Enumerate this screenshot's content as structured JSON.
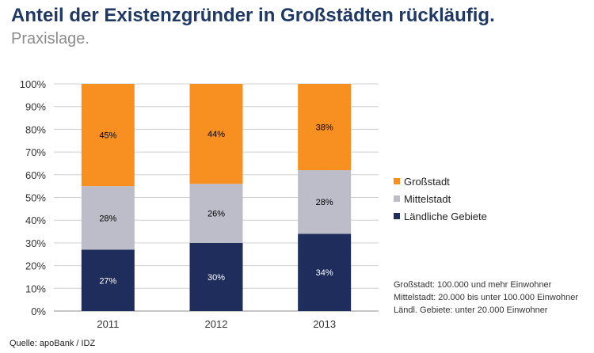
{
  "header": {
    "title": "Anteil der Existenzgründer in Großstädten rückläufig.",
    "subtitle": "Praxislage."
  },
  "chart_data": {
    "type": "bar",
    "stacked": true,
    "categories": [
      "2011",
      "2012",
      "2013"
    ],
    "series": [
      {
        "name": "Ländliche Gebiete",
        "values": [
          27,
          30,
          34
        ],
        "color": "#1f2d5c",
        "label_color": "#ffffff"
      },
      {
        "name": "Mittelstadt",
        "values": [
          28,
          26,
          28
        ],
        "color": "#bdbdc9",
        "label_color": "#000000"
      },
      {
        "name": "Großstadt",
        "values": [
          45,
          44,
          38
        ],
        "color": "#f79020",
        "label_color": "#000000"
      }
    ],
    "ylim": [
      0,
      100
    ],
    "yticks": [
      "0%",
      "10%",
      "20%",
      "30%",
      "40%",
      "50%",
      "60%",
      "70%",
      "80%",
      "90%",
      "100%"
    ],
    "grid": true,
    "legend_position": "right"
  },
  "legend": {
    "items": [
      {
        "label": "Großstadt",
        "color": "#f79020"
      },
      {
        "label": "Mittelstadt",
        "color": "#bdbdc9"
      },
      {
        "label": "Ländliche Gebiete",
        "color": "#1f2d5c"
      }
    ]
  },
  "notes": {
    "line1": "Großstadt: 100.000 und mehr Einwohner",
    "line2": "Mittelstadt: 20.000 bis unter 100.000  Einwohner",
    "line3": "Ländl. Gebiete: unter 20.000 Einwohner"
  },
  "source": "Quelle: apoBank / IDZ"
}
